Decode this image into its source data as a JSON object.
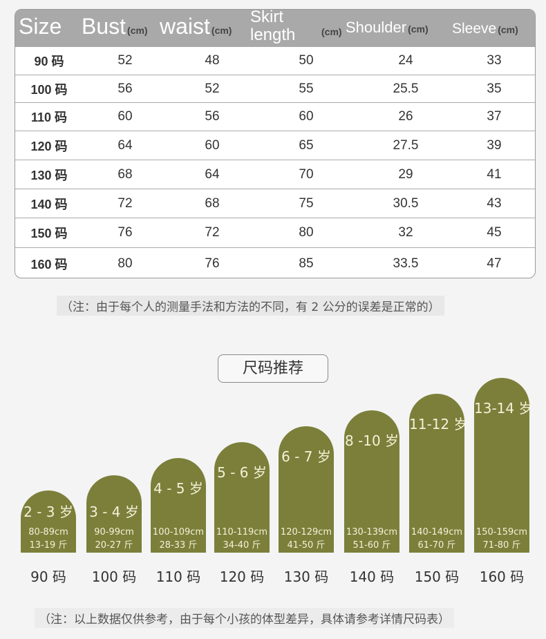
{
  "table": {
    "headers": [
      {
        "label": "Size",
        "unit": ""
      },
      {
        "label": "Bust",
        "unit": "(cm)"
      },
      {
        "label": "waist",
        "unit": "(cm)"
      },
      {
        "label": "Skirt length",
        "unit": "(cm)"
      },
      {
        "label": "Shoulder",
        "unit": "(cm)"
      },
      {
        "label": "Sleeve",
        "unit": "(cm)"
      }
    ],
    "rows": [
      [
        "90 码",
        "52",
        "48",
        "50",
        "24",
        "33"
      ],
      [
        "100 码",
        "56",
        "52",
        "55",
        "25.5",
        "35"
      ],
      [
        "110 码",
        "60",
        "56",
        "60",
        "26",
        "37"
      ],
      [
        "120 码",
        "64",
        "60",
        "65",
        "27.5",
        "39"
      ],
      [
        "130 码",
        "68",
        "64",
        "70",
        "29",
        "41"
      ],
      [
        "140 码",
        "72",
        "68",
        "75",
        "30.5",
        "43"
      ],
      [
        "150 码",
        "76",
        "72",
        "80",
        "32",
        "45"
      ],
      [
        "160 码",
        "80",
        "76",
        "85",
        "33.5",
        "47"
      ]
    ]
  },
  "note1": "（注：由于每个人的测量手法和方法的不同，有 2 公分的误差是正常的）",
  "recommend_title": "尺码推荐",
  "recommend": [
    {
      "age": "2 - 3 岁",
      "height": "80-89cm",
      "weight": "13-19 斤",
      "size": "90 码"
    },
    {
      "age": "3 - 4 岁",
      "height": "90-99cm",
      "weight": "20-27 斤",
      "size": "100 码"
    },
    {
      "age": "4 - 5 岁",
      "height": "100-109cm",
      "weight": "28-33 斤",
      "size": "110 码"
    },
    {
      "age": "5 - 6 岁",
      "height": "110-119cm",
      "weight": "34-40 斤",
      "size": "120 码"
    },
    {
      "age": "6 - 7 岁",
      "height": "120-129cm",
      "weight": "41-50 斤",
      "size": "130 码"
    },
    {
      "age": "8 -10 岁",
      "height": "130-139cm",
      "weight": "51-60 斤",
      "size": "140 码"
    },
    {
      "age": "11-12 岁",
      "height": "140-149cm",
      "weight": "61-70 斤",
      "size": "150 码"
    },
    {
      "age": "13-14 岁",
      "height": "150-159cm",
      "weight": "71-80 斤",
      "size": "160 码"
    }
  ],
  "note2": "（注：以上数据仅供参考，由于每个小孩的体型差异，具体请参考详情尺码表）",
  "colors": {
    "header": "#a9a9a9",
    "bar": "#7b7f3a"
  }
}
